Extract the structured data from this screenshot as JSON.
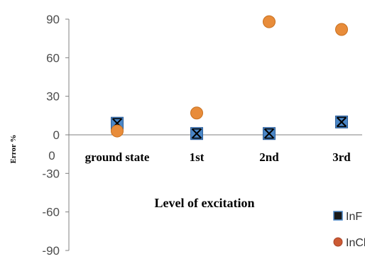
{
  "chart_data": {
    "type": "scatter",
    "title": "",
    "xlabel": "Level of excitation",
    "ylabel": "Error %",
    "ylim": [
      -90,
      90
    ],
    "yticks": [
      90,
      60,
      30,
      0,
      -30,
      -60,
      -90
    ],
    "x_origin_label": "0",
    "categories": [
      "ground state",
      "1st",
      "2nd",
      "3rd"
    ],
    "series": [
      {
        "name": "InF",
        "marker": "square-x",
        "color": "#4a86c6",
        "values": [
          9,
          1,
          1,
          10
        ]
      },
      {
        "name": "InCl",
        "marker": "circle",
        "color": "#e88c3a",
        "values": [
          3,
          17,
          88,
          82
        ]
      }
    ],
    "legend": "bottom-right",
    "grid": false
  }
}
